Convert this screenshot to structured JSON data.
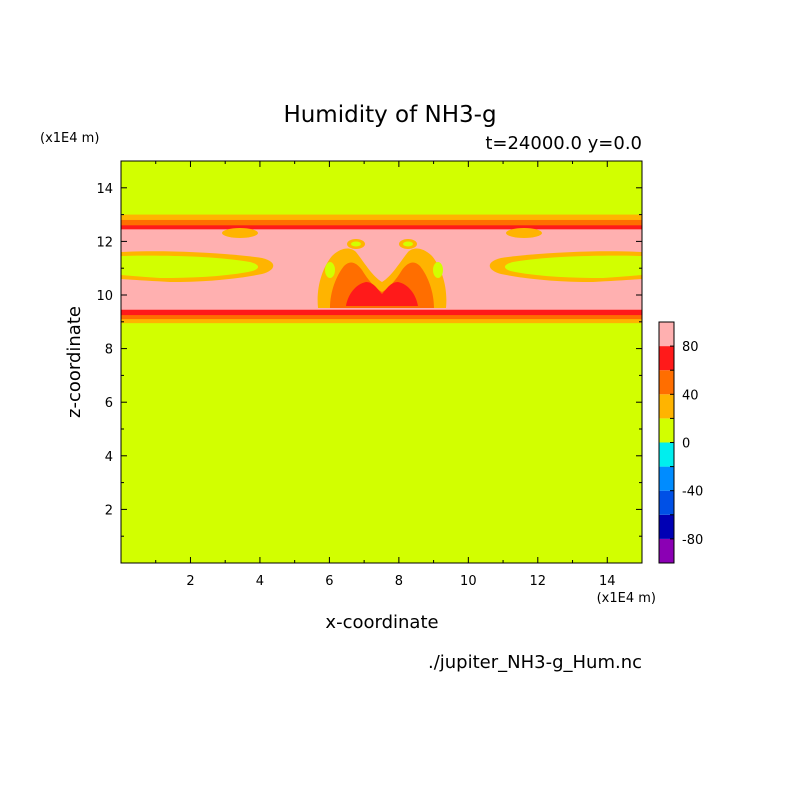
{
  "chart_data": {
    "type": "heatmap",
    "title": "Humidity of NH3-g",
    "subtitle": "t=24000.0 y=0.0",
    "xlabel": "x-coordinate",
    "ylabel": "z-coordinate",
    "x_unit": "(x1E4 m)",
    "y_unit": "(x1E4 m)",
    "source_file": "./jupiter_NH3-g_Hum.nc",
    "xlim": [
      0,
      15
    ],
    "ylim": [
      0,
      15
    ],
    "xticks": [
      2,
      4,
      6,
      8,
      10,
      12,
      14
    ],
    "yticks": [
      2,
      4,
      6,
      8,
      10,
      12,
      14
    ],
    "colorbar": {
      "levels": [
        -100,
        -80,
        -60,
        -40,
        -20,
        0,
        20,
        40,
        60,
        80,
        100
      ],
      "colors": [
        "#8b00b4",
        "#0000b4",
        "#0050e6",
        "#008cff",
        "#00eeee",
        "#d2ff00",
        "#ffb400",
        "#ff6e00",
        "#ff1a1a",
        "#ffb0b0"
      ],
      "tick_labels": [
        "-80",
        "-40",
        "0",
        "40",
        "80"
      ],
      "tick_values": [
        -80,
        -40,
        0,
        40,
        80
      ]
    },
    "field": {
      "background_value": 10,
      "layers": [
        {
          "z_range": [
            8.95,
            13.0
          ],
          "value": 30
        },
        {
          "z_range": [
            9.1,
            12.8
          ],
          "value": 50
        },
        {
          "z_range": [
            9.25,
            12.6
          ],
          "value": 70
        },
        {
          "z_range": [
            9.45,
            12.45
          ],
          "value": 90
        }
      ],
      "features": [
        {
          "kind": "yellow_lobe",
          "x": [
            0,
            4.3
          ],
          "z": [
            10.4,
            11.5
          ],
          "value": 10
        },
        {
          "kind": "yellow_lobe",
          "x": [
            10.7,
            15
          ],
          "z": [
            10.4,
            11.5
          ],
          "value": 10
        },
        {
          "kind": "orange_plume",
          "x": [
            5.4,
            9.6
          ],
          "z": [
            9.5,
            11.8
          ],
          "value": 50
        },
        {
          "kind": "red_core",
          "x": [
            6.4,
            8.6
          ],
          "z": [
            9.6,
            10.8
          ],
          "value": 70
        }
      ]
    }
  }
}
